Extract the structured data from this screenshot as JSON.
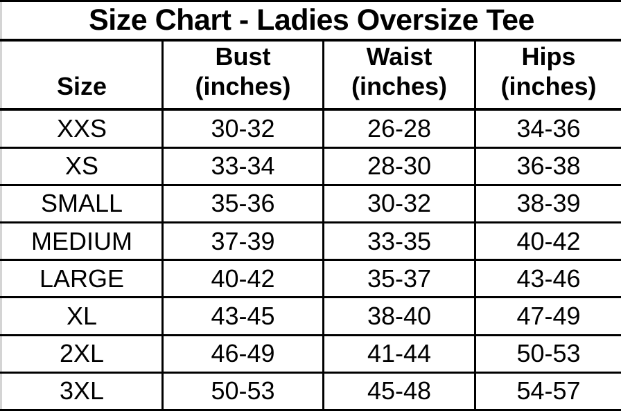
{
  "chart_data": {
    "type": "table",
    "title": "Size Chart - Ladies Oversize Tee",
    "columns": [
      {
        "label": "Size",
        "unit": ""
      },
      {
        "label": "Bust",
        "unit": "(inches)"
      },
      {
        "label": "Waist",
        "unit": "(inches)"
      },
      {
        "label": "Hips",
        "unit": "(inches)"
      }
    ],
    "rows": [
      {
        "size": "XXS",
        "bust": "30-32",
        "waist": "26-28",
        "hips": "34-36"
      },
      {
        "size": "XS",
        "bust": "33-34",
        "waist": "28-30",
        "hips": "36-38"
      },
      {
        "size": "SMALL",
        "bust": "35-36",
        "waist": "30-32",
        "hips": "38-39"
      },
      {
        "size": "MEDIUM",
        "bust": "37-39",
        "waist": "33-35",
        "hips": "40-42"
      },
      {
        "size": "LARGE",
        "bust": "40-42",
        "waist": "35-37",
        "hips": "43-46"
      },
      {
        "size": "XL",
        "bust": "43-45",
        "waist": "38-40",
        "hips": "47-49"
      },
      {
        "size": "2XL",
        "bust": "46-49",
        "waist": "41-44",
        "hips": "50-53"
      },
      {
        "size": "3XL",
        "bust": "50-53",
        "waist": "45-48",
        "hips": "54-57"
      }
    ],
    "layout": {
      "grid": "on",
      "border_color": "#000000",
      "background_color": "#ffffff",
      "text_color": "#000000"
    }
  }
}
